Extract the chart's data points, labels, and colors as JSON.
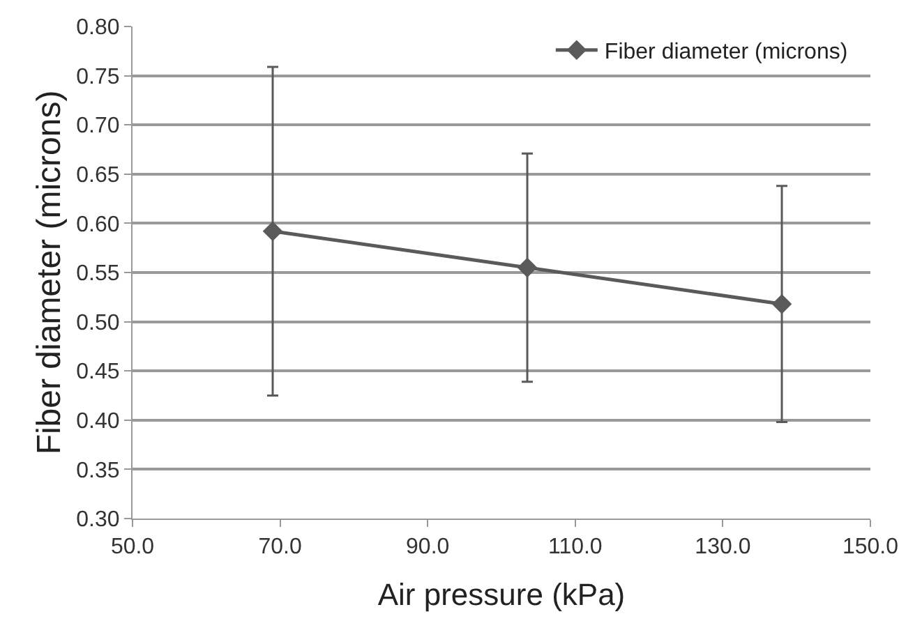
{
  "chart_data": {
    "type": "line",
    "xlabel": "Air pressure (kPa)",
    "ylabel": "Fiber diameter (microns)",
    "x": [
      69,
      103.5,
      138
    ],
    "series": [
      {
        "name": "Fiber diameter (microns)",
        "color": "#5a5a5a",
        "values": [
          0.592,
          0.555,
          0.518
        ],
        "errors": [
          0.167,
          0.116,
          0.12
        ]
      }
    ],
    "xlim": [
      50,
      150
    ],
    "xticks": [
      {
        "value": 50,
        "label": "50.0"
      },
      {
        "value": 70,
        "label": "70.0"
      },
      {
        "value": 90,
        "label": "90.0"
      },
      {
        "value": 110,
        "label": "110.0"
      },
      {
        "value": 130,
        "label": "130.0"
      },
      {
        "value": 150,
        "label": "150.0"
      }
    ],
    "ylim": [
      0.3,
      0.8
    ],
    "yticks": [
      {
        "value": 0.3,
        "label": "0.30"
      },
      {
        "value": 0.35,
        "label": "0.35"
      },
      {
        "value": 0.4,
        "label": "0.40"
      },
      {
        "value": 0.45,
        "label": "0.45"
      },
      {
        "value": 0.5,
        "label": "0.50"
      },
      {
        "value": 0.55,
        "label": "0.55"
      },
      {
        "value": 0.6,
        "label": "0.60"
      },
      {
        "value": 0.65,
        "label": "0.65"
      },
      {
        "value": 0.7,
        "label": "0.70"
      },
      {
        "value": 0.75,
        "label": "0.75"
      },
      {
        "value": 0.8,
        "label": "0.80"
      }
    ],
    "grid": "y",
    "legend": "top right",
    "marker": "diamond",
    "line_style": "solid"
  }
}
